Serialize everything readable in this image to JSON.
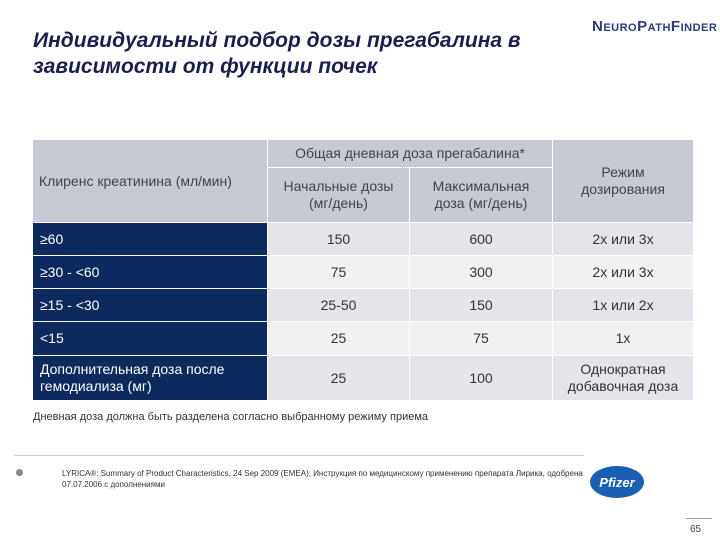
{
  "header": {
    "title": [
      "Индивидуальный подбор дозы прегабалина в",
      "зависимости от функции почек"
    ],
    "logo": "NeuroPathFinder"
  },
  "table": {
    "headers": {
      "clearance": "Клиренс креатинина (мл/мин)",
      "group": "Общая дневная доза прегабалина*",
      "start": "Начальные дозы (мг/день)",
      "max": "Максимальная доза (мг/день)",
      "regimen": "Режим дозирования"
    },
    "rows": [
      [
        "≥60",
        "150",
        "600",
        "2x или 3x"
      ],
      [
        "≥30 - <60",
        "75",
        "300",
        "2x или 3x"
      ],
      [
        "≥15 - <30",
        "25-50",
        "150",
        "1x или 2x"
      ],
      [
        "<15",
        "25",
        "75",
        "1x"
      ],
      [
        "Дополнительная доза после гемодиализа (мг)",
        "25",
        "100",
        "Однократная добавочная доза"
      ]
    ]
  },
  "note": "Дневная доза должна быть разделена согласно выбранному режиму приема",
  "reference": "LYRICA®: Summary of Product Characteristics, 24 Sep 2009 (EMEA); Инструкция по медицинскому применению препарата Лирика, одобрена 07.07.2006 с дополнениями",
  "footer": {
    "logo": "Pfizer",
    "page": "65"
  }
}
